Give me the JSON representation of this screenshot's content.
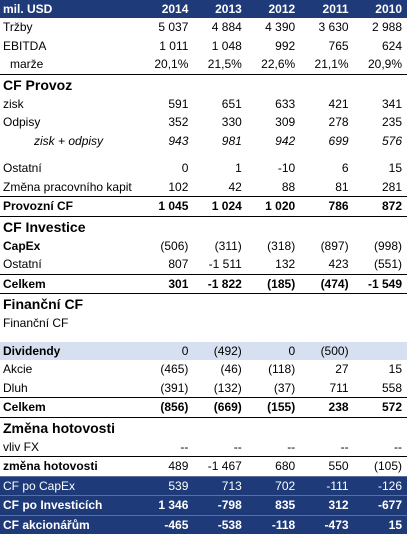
{
  "header": {
    "label": "mil. USD",
    "years": [
      "2014",
      "2013",
      "2012",
      "2011",
      "2010"
    ]
  },
  "rows": {
    "trzby": {
      "label": "Tržby",
      "v": [
        "5 037",
        "4 884",
        "4 390",
        "3 630",
        "2 988"
      ]
    },
    "ebitda": {
      "label": "EBITDA",
      "v": [
        "1 011",
        "1 048",
        "992",
        "765",
        "624"
      ]
    },
    "marze": {
      "label": "marže",
      "v": [
        "20,1%",
        "21,5%",
        "22,6%",
        "21,1%",
        "20,9%"
      ]
    },
    "cf_provoz": {
      "label": "CF Provoz"
    },
    "zisk": {
      "label": "zisk",
      "v": [
        "591",
        "651",
        "633",
        "421",
        "341"
      ]
    },
    "odpisy": {
      "label": "Odpisy",
      "v": [
        "352",
        "330",
        "309",
        "278",
        "235"
      ]
    },
    "zisk_odpisy": {
      "label": "zisk + odpisy",
      "v": [
        "943",
        "981",
        "942",
        "699",
        "576"
      ]
    },
    "ostatni1": {
      "label": "Ostatní",
      "v": [
        "0",
        "1",
        "-10",
        "6",
        "15"
      ]
    },
    "zmena_kapit": {
      "label": "Změna pracovního kapit",
      "v": [
        "102",
        "42",
        "88",
        "81",
        "281"
      ]
    },
    "provozni_cf": {
      "label": "Provozní CF",
      "v": [
        "1 045",
        "1 024",
        "1 020",
        "786",
        "872"
      ]
    },
    "cf_investice": {
      "label": "CF Investice"
    },
    "capex": {
      "label": "CapEx",
      "v": [
        "(506)",
        "(311)",
        "(318)",
        "(897)",
        "(998)"
      ]
    },
    "ostatni2": {
      "label": "Ostatní",
      "v": [
        "807",
        "-1 511",
        "132",
        "423",
        "(551)"
      ]
    },
    "celkem1": {
      "label": "Celkem",
      "v": [
        "301",
        "-1 822",
        "(185)",
        "(474)",
        "-1 549"
      ]
    },
    "financni_cf": {
      "label": "Finanční CF"
    },
    "financni_cf_sub": {
      "label": "Finanční CF"
    },
    "dividendy": {
      "label": "Dividendy",
      "v": [
        "0",
        "(492)",
        "0",
        "(500)",
        ""
      ]
    },
    "akcie": {
      "label": "Akcie",
      "v": [
        "(465)",
        "(46)",
        "(118)",
        "27",
        "15"
      ]
    },
    "dluh": {
      "label": "Dluh",
      "v": [
        "(391)",
        "(132)",
        "(37)",
        "711",
        "558"
      ]
    },
    "celkem2": {
      "label": "Celkem",
      "v": [
        "(856)",
        "(669)",
        "(155)",
        "238",
        "572"
      ]
    },
    "zmena_hot": {
      "label": "Změna hotovosti"
    },
    "vliv_fx": {
      "label": "vliv FX",
      "v": [
        "--",
        "--",
        "--",
        "--",
        "--"
      ]
    },
    "zmena_hot_row": {
      "label": "změna hotovosti",
      "v": [
        "489",
        "-1 467",
        "680",
        "550",
        "(105)"
      ]
    },
    "cf_po_capex": {
      "label": "CF po CapEx",
      "v": [
        "539",
        "713",
        "702",
        "-111",
        "-126"
      ]
    },
    "cf_po_invest": {
      "label": "CF po Investicích",
      "v": [
        "1 346",
        "-798",
        "835",
        "312",
        "-677"
      ]
    },
    "cf_akcionarum": {
      "label": "CF akcionářům",
      "v": [
        "-465",
        "-538",
        "-118",
        "-473",
        "15"
      ]
    }
  }
}
